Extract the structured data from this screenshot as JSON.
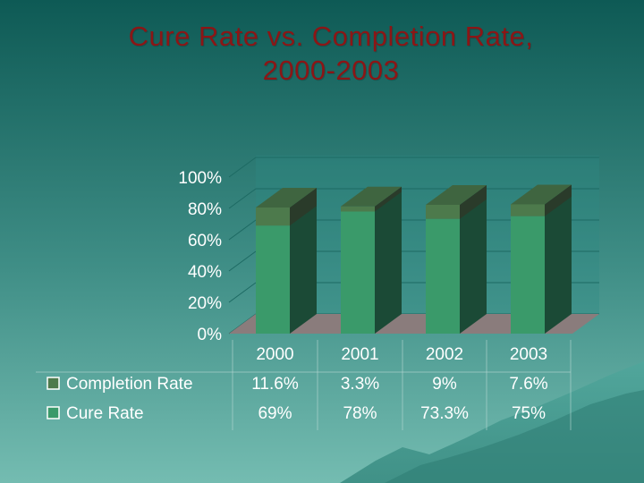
{
  "title_line1": "Cure Rate vs. Completion Rate,",
  "title_line2": "2000-2003",
  "colors": {
    "background_top": "#0e5a55",
    "background_bottom": "#6fb8ad",
    "title": "#8b1616",
    "cure_front": "#3a9a6a",
    "cure_side": "#1b4a36",
    "completion_front": "#4d7a4c",
    "completion_top": "#3f6540",
    "completion_side": "#2a3b2a",
    "floor": "#8a7c7c",
    "back_wall": "#2f8a83",
    "grid": "#1d6a63"
  },
  "chart_data": {
    "type": "bar",
    "stacked": true,
    "categories": [
      "2000",
      "2001",
      "2002",
      "2003"
    ],
    "series": [
      {
        "name": "Completion Rate",
        "values": [
          11.6,
          3.3,
          9,
          7.6
        ],
        "labels": [
          "11.6%",
          "3.3%",
          "9%",
          "7.6%"
        ]
      },
      {
        "name": "Cure Rate",
        "values": [
          69,
          78,
          73.3,
          75
        ],
        "labels": [
          "69%",
          "78%",
          "73.3%",
          "75%"
        ]
      }
    ],
    "y_ticks": [
      "0%",
      "20%",
      "40%",
      "60%",
      "80%",
      "100%"
    ],
    "ylim": [
      0,
      100
    ],
    "legend": "data-table-left",
    "grid": true
  }
}
